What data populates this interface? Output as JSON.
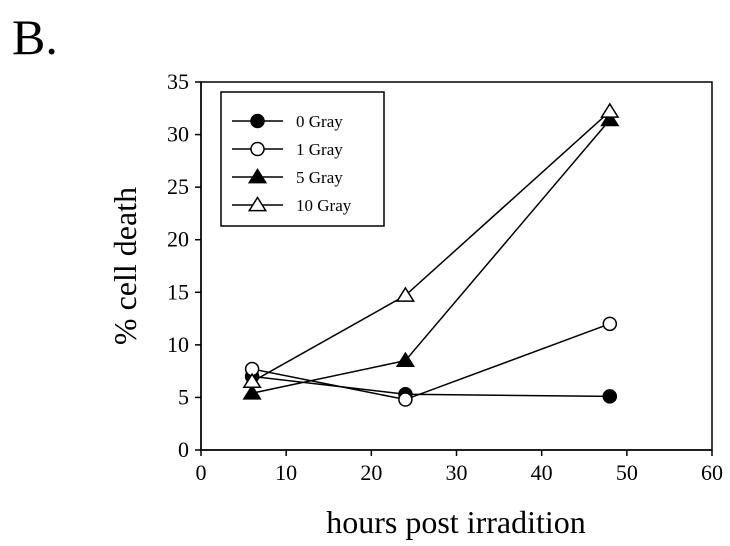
{
  "panel_label": "B.",
  "chart_data": {
    "type": "line",
    "xlabel": "hours post irradition",
    "ylabel": "% cell death",
    "xlim": [
      0,
      60
    ],
    "ylim": [
      0,
      35
    ],
    "xticks": [
      "0",
      "10",
      "20",
      "30",
      "40",
      "50",
      "60"
    ],
    "yticks": [
      "0",
      "5",
      "10",
      "15",
      "20",
      "25",
      "30",
      "35"
    ],
    "grid": false,
    "legend_position": "top-left",
    "x": [
      6,
      24,
      48
    ],
    "series": [
      {
        "name": "0 Gray",
        "marker": "circle",
        "fill": "#000000",
        "values": [
          7.0,
          5.3,
          5.1
        ]
      },
      {
        "name": "1 Gray",
        "marker": "circle",
        "fill": "#ffffff",
        "values": [
          7.7,
          4.8,
          12.0
        ]
      },
      {
        "name": "5 Gray",
        "marker": "triangle",
        "fill": "#000000",
        "values": [
          5.4,
          8.5,
          31.4
        ]
      },
      {
        "name": "10 Gray",
        "marker": "triangle",
        "fill": "#ffffff",
        "values": [
          6.5,
          14.7,
          32.2
        ]
      }
    ]
  }
}
